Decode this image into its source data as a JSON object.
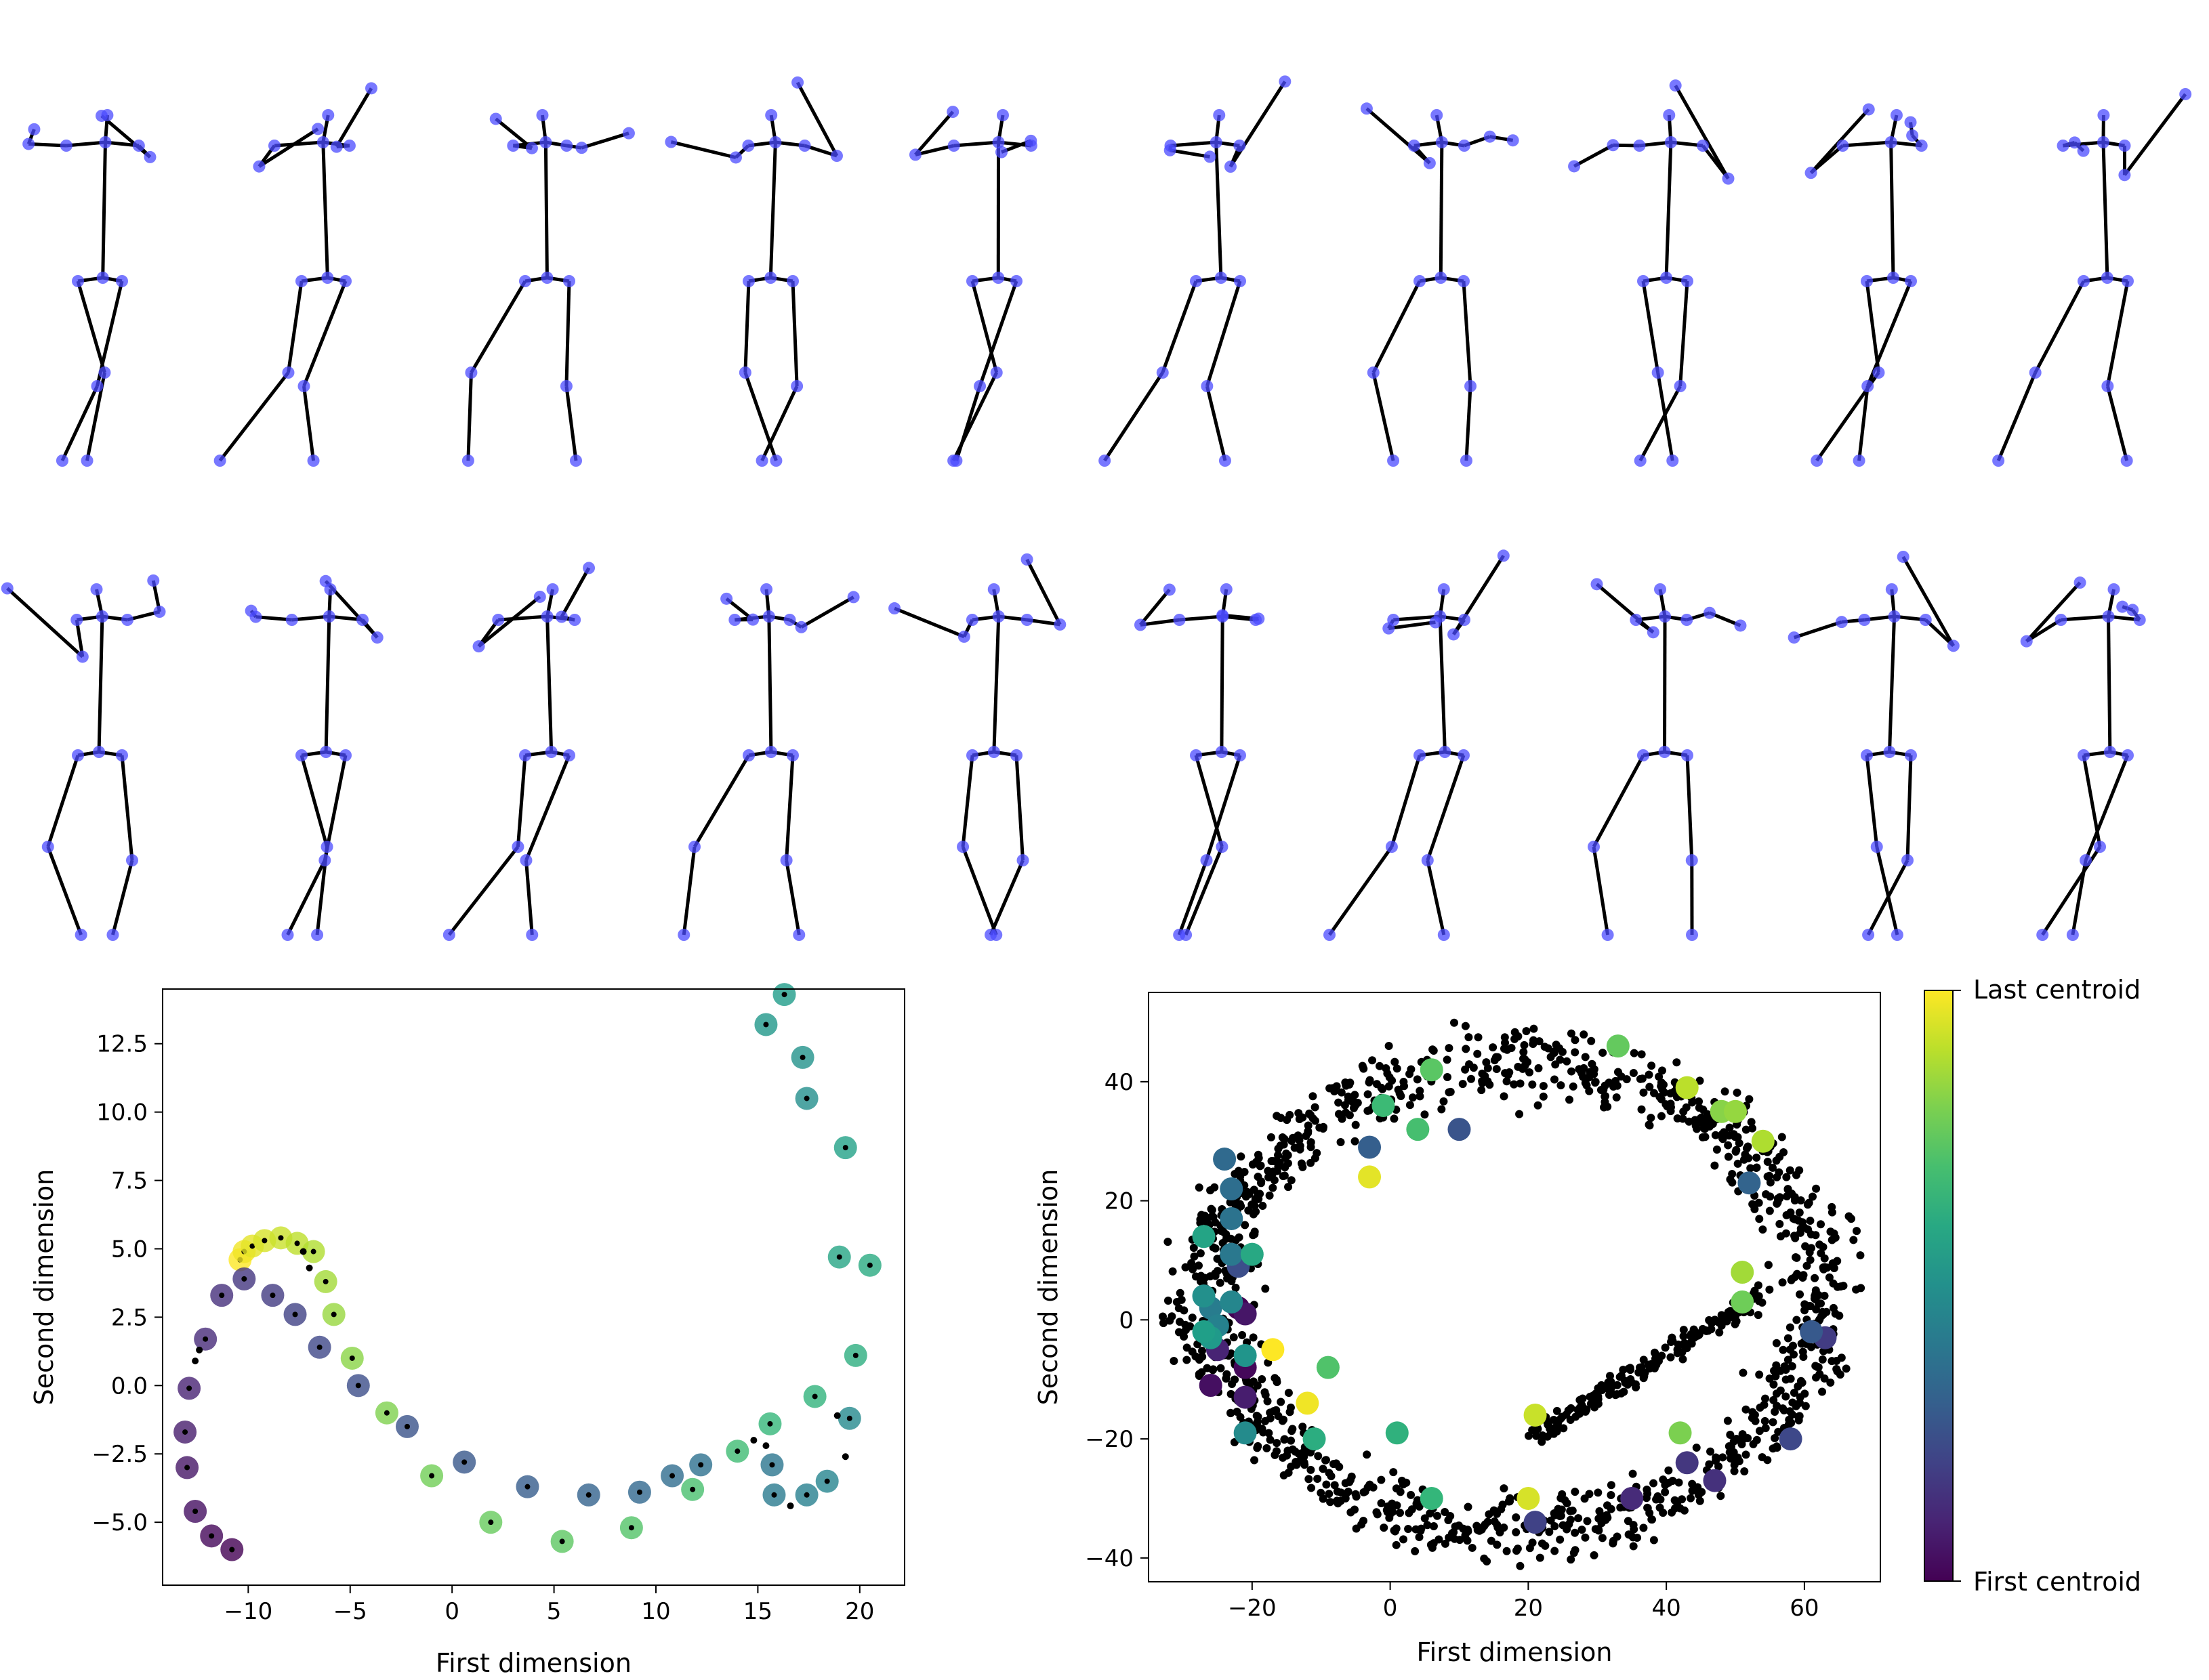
{
  "figure": {
    "panels": [
      "stick-figure-poses",
      "centroid-trajectory",
      "embedding-scatter"
    ]
  },
  "poses": {
    "rows": 2,
    "per_row": 10,
    "marker_color": "#4b4bff",
    "bone_color": "#000000"
  },
  "chart_data": [
    {
      "type": "scatter",
      "xlabel": "First dimension",
      "ylabel": "Second dimension",
      "xlim": [
        -14.2,
        22.2
      ],
      "ylim": [
        -7.3,
        14.5
      ],
      "xticks": [
        -10,
        -5,
        0,
        5,
        10,
        15,
        20
      ],
      "yticks": [
        -5.0,
        -2.5,
        0.0,
        2.5,
        5.0,
        7.5,
        10.0,
        12.5
      ],
      "colormap": "viridis",
      "centroids": [
        [
          -10.4,
          4.6
        ],
        [
          -10.2,
          4.9
        ],
        [
          -9.8,
          5.1
        ],
        [
          -9.2,
          5.3
        ],
        [
          -8.4,
          5.4
        ],
        [
          -7.6,
          5.2
        ],
        [
          -6.8,
          4.9
        ],
        [
          -6.2,
          3.8
        ],
        [
          -5.8,
          2.6
        ],
        [
          -4.9,
          1.0
        ],
        [
          -3.2,
          -1.0
        ],
        [
          -1.0,
          -3.3
        ],
        [
          1.9,
          -5.0
        ],
        [
          5.4,
          -5.7
        ],
        [
          8.8,
          -5.2
        ],
        [
          11.8,
          -3.8
        ],
        [
          14.0,
          -2.4
        ],
        [
          15.6,
          -1.4
        ],
        [
          17.8,
          -0.4
        ],
        [
          19.8,
          1.1
        ],
        [
          20.5,
          4.4
        ],
        [
          19.0,
          4.7
        ],
        [
          19.3,
          8.7
        ],
        [
          16.3,
          14.3
        ],
        [
          15.4,
          13.2
        ],
        [
          17.2,
          12.0
        ],
        [
          17.4,
          10.5
        ],
        [
          19.5,
          -1.2
        ],
        [
          18.4,
          -3.5
        ],
        [
          17.4,
          -4.0
        ],
        [
          15.8,
          -4.0
        ],
        [
          15.7,
          -2.9
        ],
        [
          12.2,
          -2.9
        ],
        [
          10.8,
          -3.3
        ],
        [
          9.2,
          -3.9
        ],
        [
          6.7,
          -4.0
        ],
        [
          3.7,
          -3.7
        ],
        [
          0.6,
          -2.8
        ],
        [
          -2.2,
          -1.5
        ],
        [
          -4.6,
          0.0
        ],
        [
          -6.5,
          1.4
        ],
        [
          -7.7,
          2.6
        ],
        [
          -8.8,
          3.3
        ],
        [
          -10.2,
          3.9
        ],
        [
          -11.3,
          3.3
        ],
        [
          -12.1,
          1.7
        ],
        [
          -12.9,
          -0.1
        ],
        [
          -13.1,
          -1.7
        ],
        [
          -13.0,
          -3.0
        ],
        [
          -12.6,
          -4.6
        ],
        [
          -11.8,
          -5.5
        ],
        [
          -10.8,
          -6.0
        ]
      ],
      "trajectory": [
        [
          -7.3,
          4.9
        ],
        [
          -7.0,
          4.3
        ],
        [
          -12.6,
          0.9
        ],
        [
          -12.4,
          1.3
        ],
        [
          18.9,
          -1.1
        ],
        [
          19.3,
          -2.6
        ],
        [
          16.6,
          -4.4
        ],
        [
          14.8,
          -2.0
        ],
        [
          15.4,
          -2.2
        ]
      ]
    },
    {
      "type": "scatter",
      "xlabel": "First dimension",
      "ylabel": "Second dimension",
      "xlim": [
        -35,
        71
      ],
      "ylim": [
        -44,
        55
      ],
      "xticks": [
        -20,
        0,
        20,
        40,
        60
      ],
      "yticks": [
        -40,
        -20,
        0,
        20,
        40
      ],
      "colormap": "viridis",
      "colorbar": {
        "top_label": "Last centroid",
        "bottom_label": "First centroid"
      },
      "centroids": [
        [
          -22.0,
          2.0
        ],
        [
          -21.0,
          -8.0
        ],
        [
          -26.0,
          -11.0
        ],
        [
          -21.0,
          1.0
        ],
        [
          -21.0,
          -13.0
        ],
        [
          -25.0,
          -5.0
        ],
        [
          35.0,
          -30.0
        ],
        [
          47.0,
          -27.0
        ],
        [
          43.0,
          -24.0
        ],
        [
          63.0,
          -3.0
        ],
        [
          21.0,
          -34.0
        ],
        [
          58.0,
          -20.0
        ],
        [
          -22.0,
          9.0
        ],
        [
          10.0,
          32.0
        ],
        [
          61.0,
          -2.0
        ],
        [
          -3.0,
          29.0
        ],
        [
          52.0,
          23.0
        ],
        [
          -24.0,
          27.0
        ],
        [
          -23.0,
          22.0
        ],
        [
          -23.0,
          17.0
        ],
        [
          -23.0,
          11.0
        ],
        [
          -26.0,
          2.0
        ],
        [
          -25.0,
          -1.0
        ],
        [
          -23.0,
          3.0
        ],
        [
          -21.0,
          -19.0
        ],
        [
          -27.0,
          4.0
        ],
        [
          -21.0,
          -6.0
        ],
        [
          -26.0,
          -3.0
        ],
        [
          -27.0,
          -2.0
        ],
        [
          -27.0,
          14.0
        ],
        [
          -20.0,
          11.0
        ],
        [
          -11.0,
          -20.0
        ],
        [
          1.0,
          -19.0
        ],
        [
          6.0,
          -30.0
        ],
        [
          -1.0,
          36.0
        ],
        [
          4.0,
          32.0
        ],
        [
          -9.0,
          -8.0
        ],
        [
          6.0,
          42.0
        ],
        [
          33.0,
          46.0
        ],
        [
          51.0,
          3.0
        ],
        [
          42.0,
          -19.0
        ],
        [
          48.0,
          35.0
        ],
        [
          50.0,
          35.0
        ],
        [
          51.0,
          8.0
        ],
        [
          54.0,
          30.0
        ],
        [
          43.0,
          39.0
        ],
        [
          21.0,
          -16.0
        ],
        [
          20.0,
          -30.0
        ],
        [
          -3.0,
          24.0
        ],
        [
          -12.0,
          -14.0
        ],
        [
          -17.0,
          -5.0
        ]
      ],
      "cloud": {
        "n_points": 1400,
        "color": "#000000"
      }
    }
  ]
}
